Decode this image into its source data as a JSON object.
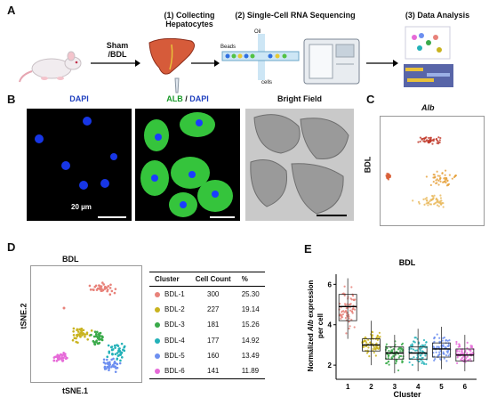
{
  "panels": {
    "a": {
      "letter": "A",
      "sham_bdl_line1": "Sham",
      "sham_bdl_line2": "/BDL",
      "step1_line1": "(1)  Collecting",
      "step1_line2": "Hepatocytes",
      "step2": "(2) Single-Cell RNA Sequencing",
      "step3": "(3) Data Analysis",
      "beads_label": "Beads",
      "oil_label": "Oil",
      "cells_label": "cells"
    },
    "b": {
      "letter": "B",
      "dapi_title": "DAPI",
      "alb_title_a": "ALB",
      "alb_title_sep": " / ",
      "alb_title_b": "DAPI",
      "bf_title": "Bright Field",
      "scale_bar": "20 µm"
    },
    "c": {
      "letter": "C",
      "gene": "Alb",
      "side_label": "BDL"
    },
    "d": {
      "letter": "D",
      "title": "BDL",
      "xlabel": "tSNE.1",
      "ylabel": "tSNE.2",
      "table_headers": [
        "Cluster",
        "Cell Count",
        "%"
      ],
      "rows": [
        {
          "cluster": "BDL-1",
          "count": "300",
          "pct": "25.30",
          "color": "#e8827a"
        },
        {
          "cluster": "BDL-2",
          "count": "227",
          "pct": "19.14",
          "color": "#c9b31f"
        },
        {
          "cluster": "BDL-3",
          "count": "181",
          "pct": "15.26",
          "color": "#3aaa4a"
        },
        {
          "cluster": "BDL-4",
          "count": "177",
          "pct": "14.92",
          "color": "#23b1b8"
        },
        {
          "cluster": "BDL-5",
          "count": "160",
          "pct": "13.49",
          "color": "#6d8ff0"
        },
        {
          "cluster": "BDL-6",
          "count": "141",
          "pct": "11.89",
          "color": "#e66ad8"
        }
      ]
    },
    "e": {
      "letter": "E"
    }
  },
  "chart_data": {
    "type": "scatter",
    "title": "BDL",
    "xlabel": "Cluster",
    "ylabel_pre": "Normalized ",
    "ylabel_gene": "Alb",
    "ylabel_post": " expression",
    "ylabel_line2": "per cell",
    "categories": [
      "1",
      "2",
      "3",
      "4",
      "5",
      "6"
    ],
    "yticks": [
      "2",
      "4",
      "6"
    ],
    "ylim": [
      1.3,
      6.5
    ],
    "medians": [
      4.9,
      3.0,
      2.6,
      2.6,
      2.8,
      2.5
    ],
    "q1": [
      4.2,
      2.7,
      2.3,
      2.3,
      2.4,
      2.2
    ],
    "q3": [
      5.5,
      3.3,
      2.9,
      2.9,
      3.1,
      2.8
    ],
    "min": [
      3.3,
      2.0,
      1.6,
      1.7,
      1.8,
      1.7
    ],
    "max": [
      6.3,
      4.2,
      3.5,
      3.8,
      3.9,
      3.5
    ],
    "colors": [
      "#e8827a",
      "#c9b31f",
      "#3aaa4a",
      "#23b1b8",
      "#6d8ff0",
      "#e66ad8"
    ]
  }
}
